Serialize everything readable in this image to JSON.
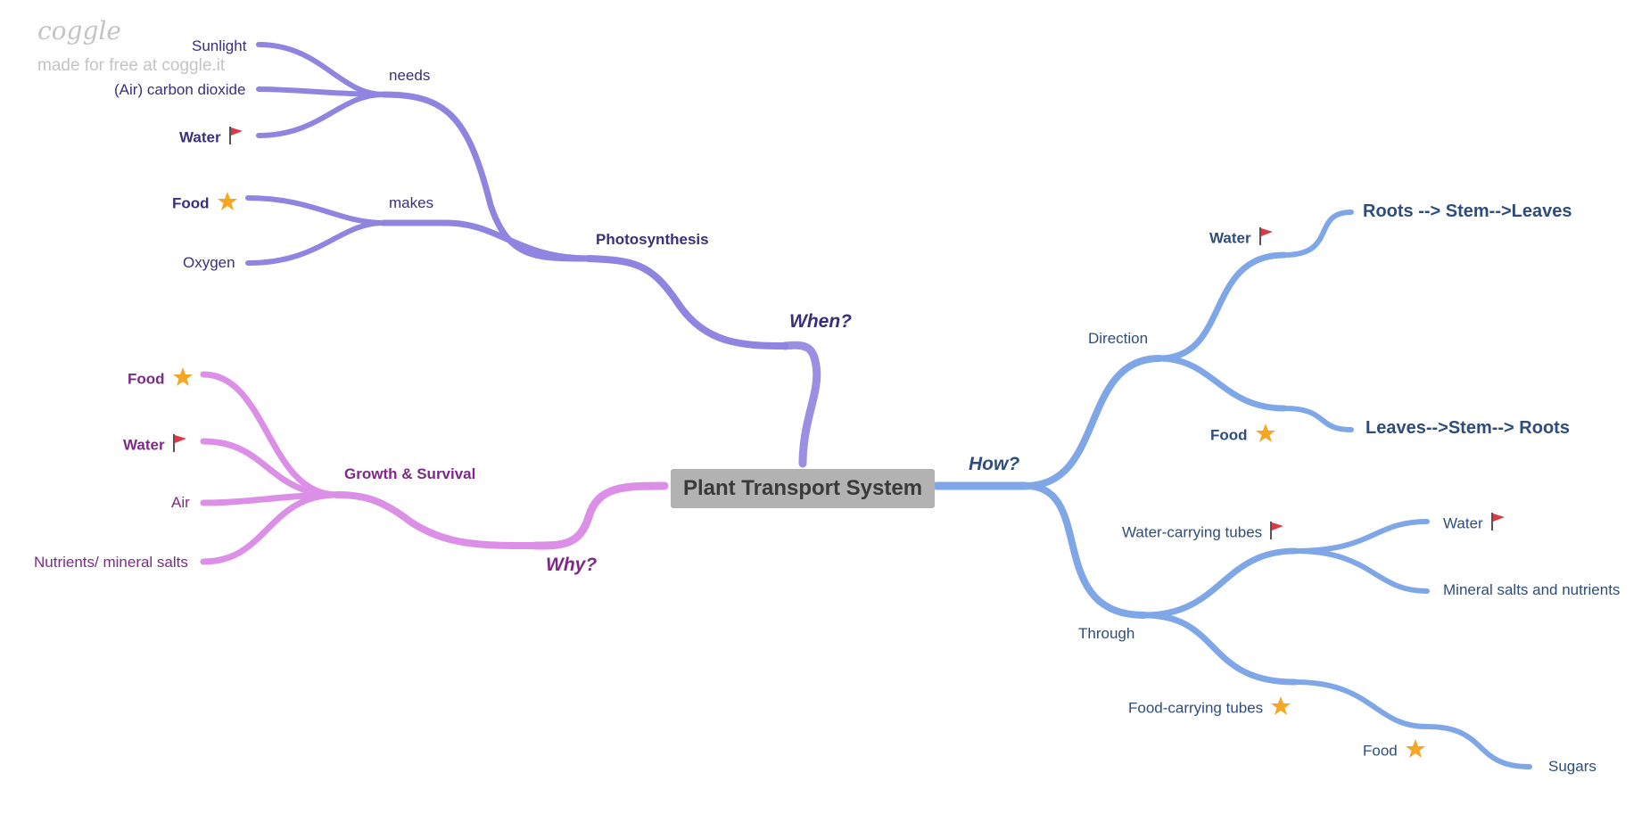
{
  "watermark": {
    "logo": "coggle",
    "text": "made for free at coggle.it"
  },
  "root": "Plant Transport System",
  "colors": {
    "purple": "#8f84e0",
    "pink": "#db8fe6",
    "blue": "#7fa6e6",
    "flag": "#d93a4a",
    "star": "#f5a623"
  },
  "when": {
    "label": "When?",
    "photosynthesis": "Photosynthesis",
    "needs": {
      "label": "needs",
      "items": [
        "Sunlight",
        "(Air) carbon dioxide",
        "Water"
      ]
    },
    "makes": {
      "label": "makes",
      "items": [
        "Food",
        "Oxygen"
      ]
    }
  },
  "why": {
    "label": "Why?",
    "growth": "Growth & Survival",
    "items": [
      "Food",
      "Water",
      "Air",
      "Nutrients/ mineral salts"
    ]
  },
  "how": {
    "label": "How?",
    "direction": {
      "label": "Direction",
      "water": "Water",
      "water_path": "Roots --> Stem-->Leaves",
      "food": "Food",
      "food_path": "Leaves-->Stem--> Roots"
    },
    "through": {
      "label": "Through",
      "water_tubes": "Water-carrying tubes",
      "water_tubes_items": [
        "Water",
        "Mineral salts and nutrients"
      ],
      "food_tubes": "Food-carrying tubes",
      "food": "Food",
      "sugars": "Sugars"
    }
  }
}
